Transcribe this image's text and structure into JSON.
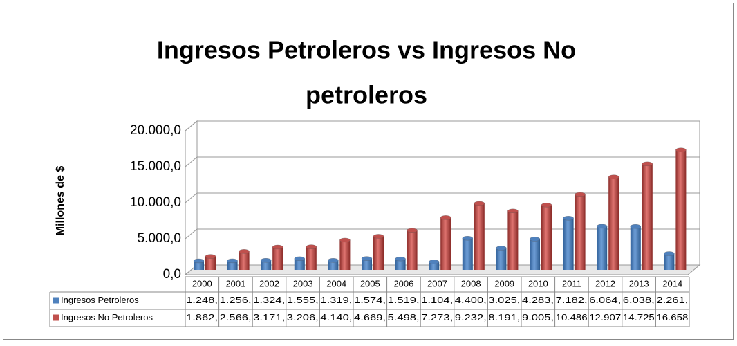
{
  "chart_data": {
    "type": "bar3d",
    "title": "Ingresos Petroleros vs Ingresos No petroleros",
    "y_axis_label": "Millones de $",
    "categories": [
      "2000",
      "2001",
      "2002",
      "2003",
      "2004",
      "2005",
      "2006",
      "2007",
      "2008",
      "2009",
      "2010",
      "2011",
      "2012",
      "2013",
      "2014"
    ],
    "series": [
      {
        "name": "Ingresos Petroleros",
        "color": "#4f81bd",
        "values": [
          1248,
          1256,
          1324,
          1555,
          1319,
          1574,
          1519,
          1104,
          4400,
          3025,
          4283,
          7182,
          6064,
          6038,
          2261
        ],
        "value_labels": [
          "1.248,",
          "1.256,",
          "1.324,",
          "1.555,",
          "1.319,",
          "1.574,",
          "1.519,",
          "1.104,",
          "4.400,",
          "3.025,",
          "4.283,",
          "7.182,",
          "6.064,",
          "6.038,",
          "2.261,"
        ]
      },
      {
        "name": "Ingresos No Petroleros",
        "color": "#c0504d",
        "values": [
          1862,
          2566,
          3171,
          3206,
          4140,
          4669,
          5498,
          7273,
          9232,
          8191,
          9005,
          10486,
          12907,
          14725,
          16658
        ],
        "value_labels": [
          "1.862,",
          "2.566,",
          "3.171,",
          "3.206,",
          "4.140,",
          "4.669,",
          "5.498,",
          "7.273,",
          "9.232,",
          "8.191,",
          "9.005,",
          "10.486",
          "12.907",
          "14.725",
          "16.658"
        ]
      }
    ],
    "ylim": [
      0,
      20000
    ],
    "yticks": [
      {
        "value": 0,
        "label": "0,0"
      },
      {
        "value": 5000,
        "label": "5.000,0"
      },
      {
        "value": 10000,
        "label": "10.000,0"
      },
      {
        "value": 15000,
        "label": "15.000,0"
      },
      {
        "value": 20000,
        "label": "20.000,0"
      }
    ],
    "grid": true,
    "data_table": true
  }
}
